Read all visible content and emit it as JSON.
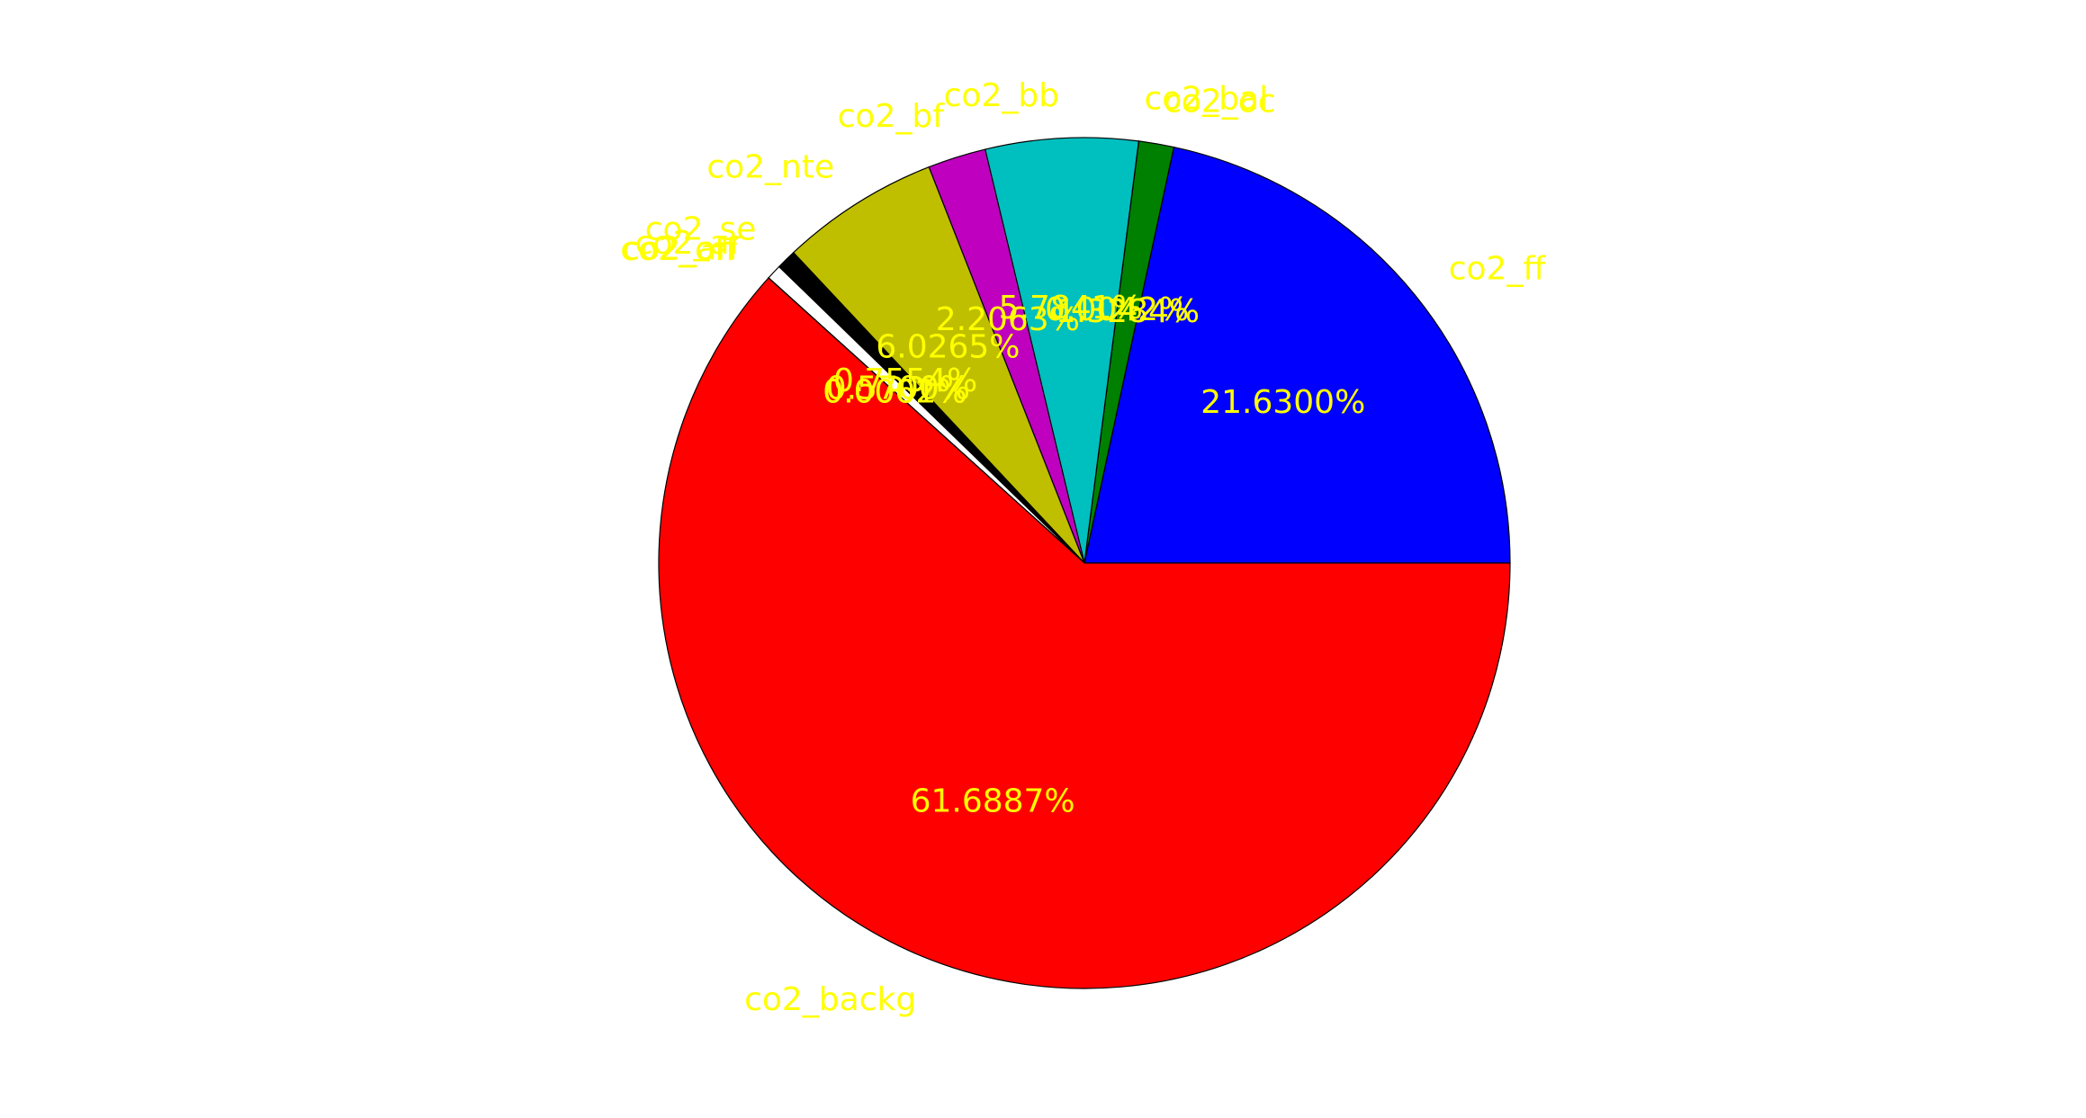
{
  "chart_data": {
    "type": "pie",
    "label_color": "#ffff00",
    "start_angle_deg": 0,
    "direction": "counterclockwise",
    "slices": [
      {
        "label": "co2_ff",
        "value": 21.63,
        "pct_label": "21.6300%",
        "color": "#0000ff"
      },
      {
        "label": "co2_oc",
        "value": 1.3284,
        "pct_label": "1.3284%",
        "color": "#008000"
      },
      {
        "label": "co2_bal",
        "value": 0.0042,
        "pct_label": "0.0042%",
        "color": "#ff0000"
      },
      {
        "label": "co2_bb",
        "value": 5.7841,
        "pct_label": "5.7841%",
        "color": "#00bfbf"
      },
      {
        "label": "co2_bf",
        "value": 2.2063,
        "pct_label": "2.2063%",
        "color": "#bf00bf"
      },
      {
        "label": "co2_nte",
        "value": 6.0265,
        "pct_label": "6.0265%",
        "color": "#bfbf00"
      },
      {
        "label": "co2_se",
        "value": 0.7554,
        "pct_label": "0.7554%",
        "color": "#000000"
      },
      {
        "label": "co2_ar",
        "value": 0.57,
        "pct_label": "0.5700%",
        "color": "#ffffff"
      },
      {
        "label": "co2_an",
        "value": 0.0062,
        "pct_label": "0.0062%",
        "color": "#0000ff"
      },
      {
        "label": "co2_off",
        "value": 0.0001,
        "pct_label": "0.0001%",
        "color": "#008000"
      },
      {
        "label": "co2_backg",
        "value": 61.6887,
        "pct_label": "61.6887%",
        "color": "#ff0000"
      }
    ]
  }
}
